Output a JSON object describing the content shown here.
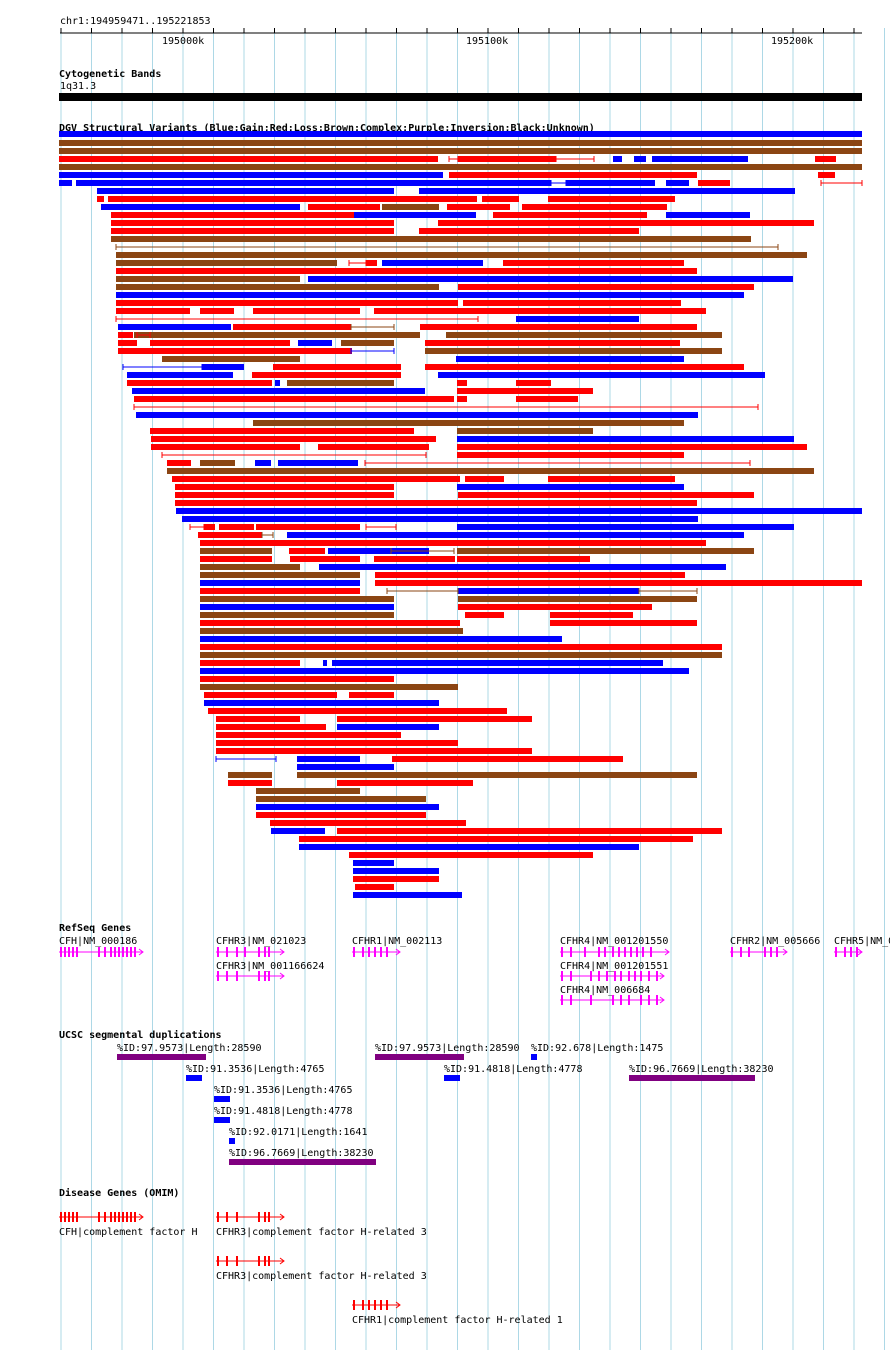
{
  "coords": "chr1:194959471..195221853",
  "ruler": {
    "ticks": [
      "195000k",
      "195100k",
      "195200k"
    ]
  },
  "tracks": {
    "cyto": {
      "title": "Cytogenetic Bands",
      "band": "1q31.3"
    },
    "dgv": {
      "title": "DGV Structural Variants (Blue:Gain;Red:Loss;Brown:Complex;Purple:Inversion;Black:Unknown)"
    },
    "refseq": {
      "title": "RefSeq Genes",
      "genes": [
        {
          "label": "CFH|NM_000186"
        },
        {
          "label": "CFHR3|NM_021023"
        },
        {
          "label": "CFHR3|NM_001166624"
        },
        {
          "label": "CFHR1|NM_002113"
        },
        {
          "label": "CFHR4|NM_001201550"
        },
        {
          "label": "CFHR4|NM_001201551"
        },
        {
          "label": "CFHR4|NM_006684"
        },
        {
          "label": "CFHR2|NM_005666"
        },
        {
          "label": "CFHR5|NM_0"
        }
      ]
    },
    "segdup": {
      "title": "UCSC segmental duplications",
      "items": [
        {
          "label": "%ID:97.9573|Length:28590",
          "color": "#800080"
        },
        {
          "label": "%ID:97.9573|Length:28590",
          "color": "#800080"
        },
        {
          "label": "%ID:92.678|Length:1475",
          "color": "#0000ff"
        },
        {
          "label": "%ID:91.3536|Length:4765",
          "color": "#0000ff"
        },
        {
          "label": "%ID:91.4818|Length:4778",
          "color": "#0000ff"
        },
        {
          "label": "%ID:96.7669|Length:38230",
          "color": "#800080"
        },
        {
          "label": "%ID:91.3536|Length:4765",
          "color": "#0000ff"
        },
        {
          "label": "%ID:91.4818|Length:4778",
          "color": "#0000ff"
        },
        {
          "label": "%ID:92.0171|Length:1641",
          "color": "#0000ff"
        },
        {
          "label": "%ID:96.7669|Length:38230",
          "color": "#800080"
        }
      ]
    },
    "omim": {
      "title": "Disease Genes (OMIM)",
      "genes": [
        {
          "label": "CFH|complement factor H"
        },
        {
          "label": "CFHR3|complement factor H-related 3"
        },
        {
          "label": "CFHR3|complement factor H-related 3"
        },
        {
          "label": "CFHR1|complement factor H-related 1"
        }
      ]
    }
  },
  "colors": {
    "gain": "#0000ff",
    "loss": "#ff0000",
    "complex": "#8b4513",
    "inversion": "#800080",
    "gene": "#ff00ff",
    "omim": "#ff0000",
    "omim_label": "#000080",
    "grid": "#add8e6"
  }
}
